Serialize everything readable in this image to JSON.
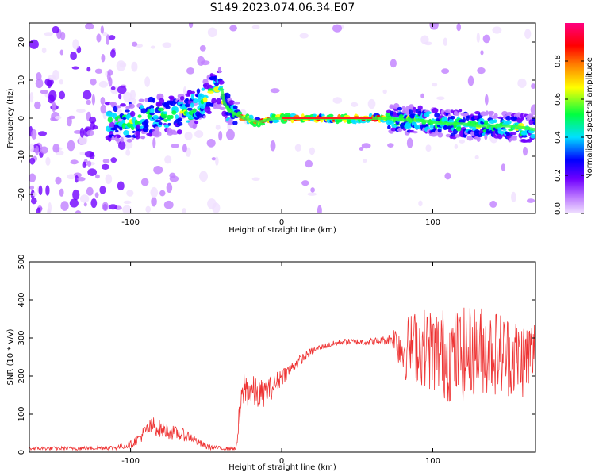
{
  "chart_data": [
    {
      "type": "heatmap",
      "title": "S149.2023.074.06.34.E07",
      "xlabel": "Height of straight line (km)",
      "ylabel": "Frequency (Hz)",
      "xlim": [
        -167,
        168
      ],
      "ylim": [
        -25,
        25
      ],
      "x_ticks": [
        -100,
        0,
        100
      ],
      "y_ticks": [
        -20,
        -10,
        0,
        10,
        20
      ],
      "colorbar": {
        "label": "Normalized spectral amplitude",
        "range": [
          0.0,
          1.0
        ],
        "ticks": [
          "0.0",
          "0.2",
          "0.4",
          "0.6",
          "0.8"
        ],
        "colors": [
          "#f0e0ff",
          "#c080ff",
          "#7000ff",
          "#0000ff",
          "#00e0ff",
          "#00ff40",
          "#ffff00",
          "#ff8000",
          "#ff0000",
          "#ff0080"
        ]
      },
      "ridge": {
        "x": [
          -110,
          -100,
          -90,
          -80,
          -70,
          -60,
          -50,
          -45,
          -40,
          -38,
          -35,
          -30,
          -25,
          -20,
          -15,
          -10,
          -5,
          0,
          10,
          20,
          30,
          40,
          50,
          60,
          70,
          80,
          90,
          100,
          110,
          120,
          130,
          140,
          150,
          160,
          168
        ],
        "y": [
          -1,
          -1,
          0,
          1,
          1,
          2,
          5,
          7,
          8,
          4,
          2,
          1,
          0,
          -0.5,
          -1,
          -0.5,
          0,
          0,
          0,
          0,
          0,
          0,
          0,
          0,
          0,
          -0.5,
          -0.5,
          -1,
          -1.5,
          -1.5,
          -2,
          -2,
          -2,
          -2.5,
          -3
        ]
      }
    },
    {
      "type": "line",
      "xlabel": "Height of straight line (km)",
      "ylabel": "SNR (10 * v/v)",
      "xlim": [
        -167,
        168
      ],
      "ylim": [
        0,
        500
      ],
      "x_ticks": [
        -100,
        0,
        100
      ],
      "y_ticks": [
        0,
        100,
        200,
        300,
        400,
        500
      ],
      "color": "#ee3333",
      "series": [
        {
          "x": [
            -167,
            -140,
            -110,
            -100,
            -95,
            -90,
            -85,
            -80,
            -75,
            -70,
            -65,
            -60,
            -55,
            -50,
            -45,
            -40,
            -35,
            -30,
            -28,
            -25,
            -20,
            -15,
            -10,
            -5,
            0,
            5,
            10,
            15,
            20,
            25,
            30,
            40,
            50,
            60,
            70,
            75,
            80,
            90,
            100,
            110,
            120,
            130,
            140,
            150,
            160,
            168
          ],
          "y": [
            10,
            10,
            12,
            20,
            35,
            55,
            70,
            60,
            55,
            50,
            45,
            40,
            25,
            15,
            12,
            10,
            10,
            10,
            90,
            170,
            160,
            150,
            160,
            175,
            200,
            215,
            235,
            250,
            265,
            275,
            280,
            290,
            290,
            290,
            295,
            300,
            270,
            280,
            270,
            255,
            255,
            270,
            265,
            255,
            245,
            260
          ],
          "spread": [
            5,
            5,
            6,
            10,
            15,
            20,
            25,
            22,
            20,
            18,
            16,
            14,
            10,
            8,
            6,
            5,
            5,
            5,
            45,
            50,
            45,
            40,
            35,
            30,
            25,
            18,
            15,
            12,
            10,
            8,
            8,
            8,
            8,
            10,
            12,
            35,
            80,
            100,
            115,
            125,
            125,
            120,
            115,
            110,
            105,
            100
          ]
        }
      ]
    }
  ]
}
